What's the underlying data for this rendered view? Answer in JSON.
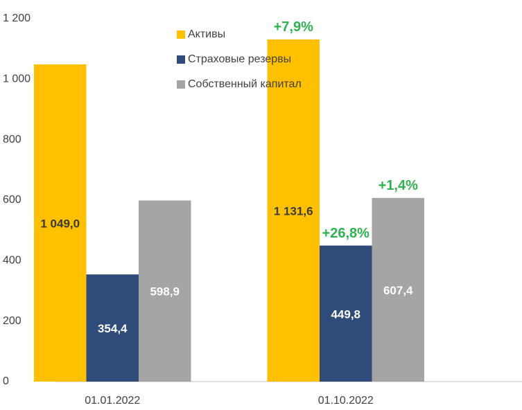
{
  "chart_data": {
    "type": "bar",
    "categories": [
      "01.01.2022",
      "01.10.2022"
    ],
    "series": [
      {
        "name": "Активы",
        "color": "#ffc000",
        "label_color": "#3a3a3a",
        "values": [
          1049.0,
          1131.6
        ],
        "value_labels": [
          "1 049,0",
          "1 131,6"
        ],
        "change_labels": [
          null,
          "+7,9%"
        ]
      },
      {
        "name": "Страховые резервы",
        "color": "#2e4b7a",
        "label_color": "#ffffff",
        "values": [
          354.4,
          449.8
        ],
        "value_labels": [
          "354,4",
          "449,8"
        ],
        "change_labels": [
          null,
          "+26,8%"
        ]
      },
      {
        "name": "Собственный капитал",
        "color": "#a5a5a5",
        "label_color": "#ffffff",
        "values": [
          598.9,
          607.4
        ],
        "value_labels": [
          "598,9",
          "607,4"
        ],
        "change_labels": [
          null,
          "+1,4%"
        ]
      }
    ],
    "change_color": "#2eb24f",
    "ylim": [
      0,
      1200
    ],
    "yticks": [
      0,
      200,
      400,
      600,
      800,
      {
        "value": 1000,
        "label": "1 000"
      },
      {
        "value": 1200,
        "label": "1 200"
      }
    ],
    "grid": false,
    "legend": "top"
  }
}
